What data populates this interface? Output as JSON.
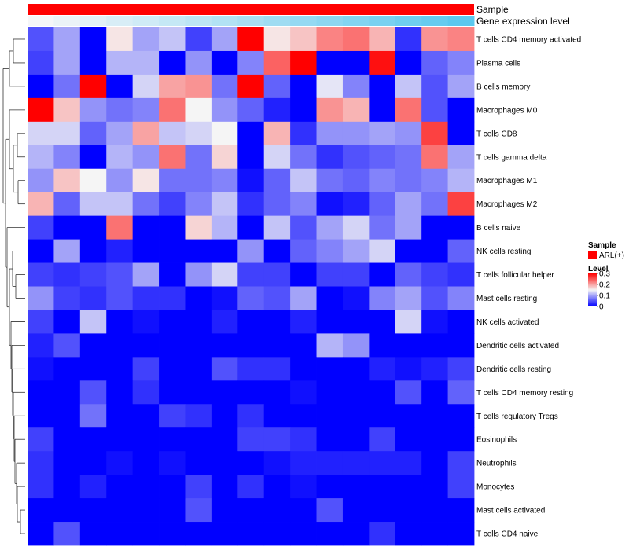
{
  "chart_data": {
    "type": "heatmap",
    "annotation_tracks": [
      {
        "name": "Sample",
        "label": "Sample",
        "legend_entry": "ARL(+)",
        "color": "#FF0000"
      },
      {
        "name": "Gene expression level",
        "label": "Gene expression level",
        "gradient_from": "#F5F6F8",
        "gradient_to": "#5CC8EE"
      }
    ],
    "n_columns": 17,
    "rows": [
      "T cells CD4 memory activated",
      "Plasma cells",
      "B cells memory",
      "Macrophages M0",
      "T cells CD8",
      "T cells gamma delta",
      "Macrophages M1",
      "Macrophages M2",
      "B cells naive",
      "NK cells resting",
      "T cells follicular helper",
      "Mast cells resting",
      "NK cells activated",
      "Dendritic cells activated",
      "Dendritic cells resting",
      "T cells CD4 memory resting",
      "T cells regulatory  Tregs",
      "Eosinophils",
      "Neutrophils",
      "Monocytes",
      "Mast cells activated",
      "T cells CD4 naive"
    ],
    "values": [
      [
        0.05,
        0.1,
        0.0,
        0.16,
        0.1,
        0.12,
        0.04,
        0.1,
        0.3,
        0.16,
        0.18,
        0.22,
        0.23,
        0.19,
        0.03,
        0.21,
        0.22
      ],
      [
        0.04,
        0.1,
        0.0,
        0.11,
        0.11,
        0.0,
        0.09,
        0.0,
        0.08,
        0.24,
        0.3,
        0.0,
        0.0,
        0.29,
        0.0,
        0.06,
        0.08
      ],
      [
        0.0,
        0.07,
        0.3,
        0.0,
        0.13,
        0.2,
        0.21,
        0.07,
        0.3,
        0.06,
        0.0,
        0.14,
        0.08,
        0.0,
        0.12,
        0.05,
        0.1
      ],
      [
        0.3,
        0.18,
        0.09,
        0.07,
        0.08,
        0.23,
        0.15,
        0.09,
        0.06,
        0.02,
        0.0,
        0.21,
        0.19,
        0.0,
        0.23,
        0.05,
        0.0
      ],
      [
        0.13,
        0.13,
        0.06,
        0.1,
        0.2,
        0.12,
        0.13,
        0.15,
        0.0,
        0.19,
        0.03,
        0.09,
        0.09,
        0.1,
        0.09,
        0.26,
        0.0
      ],
      [
        0.11,
        0.08,
        0.0,
        0.11,
        0.09,
        0.23,
        0.07,
        0.17,
        0.0,
        0.13,
        0.07,
        0.03,
        0.05,
        0.06,
        0.07,
        0.23,
        0.1
      ],
      [
        0.09,
        0.18,
        0.15,
        0.09,
        0.16,
        0.07,
        0.07,
        0.08,
        0.01,
        0.06,
        0.12,
        0.07,
        0.06,
        0.08,
        0.07,
        0.08,
        0.11
      ],
      [
        0.19,
        0.06,
        0.12,
        0.12,
        0.07,
        0.04,
        0.08,
        0.12,
        0.03,
        0.06,
        0.08,
        0.01,
        0.02,
        0.06,
        0.1,
        0.07,
        0.26
      ],
      [
        0.04,
        0.0,
        0.0,
        0.23,
        0.0,
        0.0,
        0.17,
        0.11,
        0.0,
        0.12,
        0.05,
        0.1,
        0.13,
        0.07,
        0.1,
        0.0,
        0.0
      ],
      [
        0.0,
        0.1,
        0.0,
        0.02,
        0.0,
        0.0,
        0.0,
        0.0,
        0.09,
        0.0,
        0.06,
        0.08,
        0.1,
        0.13,
        0.0,
        0.0,
        0.06
      ],
      [
        0.04,
        0.03,
        0.04,
        0.05,
        0.1,
        0.0,
        0.09,
        0.13,
        0.04,
        0.04,
        0.0,
        0.04,
        0.04,
        0.0,
        0.06,
        0.04,
        0.03
      ],
      [
        0.09,
        0.04,
        0.03,
        0.05,
        0.03,
        0.03,
        0.0,
        0.01,
        0.06,
        0.05,
        0.1,
        0.0,
        0.01,
        0.08,
        0.1,
        0.05,
        0.08
      ],
      [
        0.04,
        0.0,
        0.12,
        0.0,
        0.01,
        0.0,
        0.0,
        0.02,
        0.0,
        0.0,
        0.02,
        0.0,
        0.0,
        0.0,
        0.13,
        0.01,
        0.0
      ],
      [
        0.02,
        0.05,
        0.0,
        0.0,
        0.0,
        0.0,
        0.0,
        0.0,
        0.0,
        0.0,
        0.0,
        0.11,
        0.09,
        0.0,
        0.0,
        0.0,
        0.0
      ],
      [
        0.01,
        0.0,
        0.0,
        0.0,
        0.04,
        0.0,
        0.0,
        0.05,
        0.03,
        0.03,
        0.0,
        0.0,
        0.0,
        0.02,
        0.01,
        0.02,
        0.04
      ],
      [
        0.0,
        0.0,
        0.05,
        0.0,
        0.03,
        0.0,
        0.0,
        0.0,
        0.0,
        0.0,
        0.01,
        0.0,
        0.0,
        0.0,
        0.05,
        0.0,
        0.06
      ],
      [
        0.0,
        0.0,
        0.07,
        0.0,
        0.0,
        0.04,
        0.03,
        0.0,
        0.03,
        0.0,
        0.0,
        0.0,
        0.0,
        0.0,
        0.0,
        0.0,
        0.0
      ],
      [
        0.04,
        0.0,
        0.0,
        0.0,
        0.0,
        0.0,
        0.0,
        0.0,
        0.04,
        0.04,
        0.03,
        0.0,
        0.0,
        0.04,
        0.0,
        0.0,
        0.0
      ],
      [
        0.03,
        0.0,
        0.0,
        0.01,
        0.0,
        0.01,
        0.0,
        0.0,
        0.0,
        0.01,
        0.02,
        0.02,
        0.02,
        0.02,
        0.02,
        0.0,
        0.04
      ],
      [
        0.03,
        0.0,
        0.02,
        0.0,
        0.0,
        0.0,
        0.04,
        0.0,
        0.03,
        0.0,
        0.01,
        0.0,
        0.0,
        0.0,
        0.0,
        0.0,
        0.04
      ],
      [
        0.0,
        0.0,
        0.0,
        0.0,
        0.0,
        0.0,
        0.05,
        0.0,
        0.0,
        0.0,
        0.0,
        0.05,
        0.0,
        0.0,
        0.0,
        0.0,
        0.0
      ],
      [
        0.0,
        0.05,
        0.0,
        0.0,
        0.0,
        0.0,
        0.0,
        0.0,
        0.0,
        0.0,
        0.0,
        0.0,
        0.0,
        0.03,
        0.0,
        0.0,
        0.0
      ]
    ],
    "color_scale": {
      "name": "Level",
      "min": 0,
      "max": 0.3,
      "ticks": [
        0,
        0.1,
        0.2,
        0.3
      ],
      "colors": {
        "low": "#0000FF",
        "mid": "#F5F5F5",
        "high": "#FF0000"
      },
      "midpoint": 0.15
    },
    "legend": {
      "sample_title": "Sample",
      "sample_entry": "ARL(+)",
      "sample_color": "#FF0000",
      "level_title": "Level",
      "placement": "right"
    },
    "row_dendrogram": "left"
  }
}
